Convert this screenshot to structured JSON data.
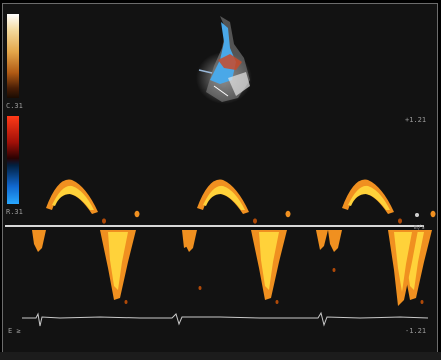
{
  "color_bars": {
    "gray_bar_colors": [
      "#ffffff",
      "#f3d89a",
      "#e3a64a",
      "#b05a14",
      "#4a1e06",
      "#1a0b02"
    ],
    "velocity_bar_colors": [
      "#ff3a18",
      "#a01008",
      "#2a0202",
      "#022040",
      "#1068d0",
      "#28a8ff"
    ],
    "gray_scale_label": "C.31",
    "velocity_scale_label": "R.31"
  },
  "doppler_labels": {
    "upper_scale_label": "+1.21",
    "lower_scale_label": "-1.21",
    "ecg_label": "E ≥",
    "baseline_label": "m/s"
  },
  "colors": {
    "spectral_bright": "#ffd23a",
    "spectral_mid": "#f09020",
    "spectral_dim": "#b04a08",
    "flow_blue": "#4aa8e8",
    "baseline": "#d8d8d8",
    "ecg_trace": "#c9c9c9"
  }
}
